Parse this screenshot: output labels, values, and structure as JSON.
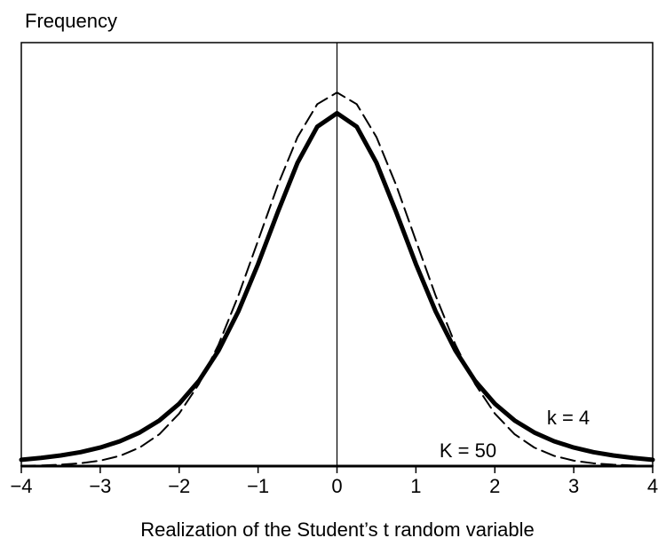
{
  "chart_data": {
    "type": "line",
    "title": "Frequency",
    "x_label": "Realization of the Student’s t random variable",
    "x": [
      -4,
      -3.75,
      -3.5,
      -3.25,
      -3,
      -2.75,
      -2.5,
      -2.25,
      -2,
      -1.75,
      -1.5,
      -1.25,
      -1,
      -0.75,
      -0.5,
      -0.25,
      0,
      0.25,
      0.5,
      0.75,
      1,
      1.25,
      1.5,
      1.75,
      2,
      2.25,
      2.5,
      2.75,
      3,
      3.25,
      3.5,
      3.75,
      4
    ],
    "series": [
      {
        "name": "k = 4",
        "color": "#000000",
        "line_style": "solid",
        "values": [
          0.0067,
          0.0087,
          0.0113,
          0.0148,
          0.0197,
          0.0264,
          0.0357,
          0.0485,
          0.0663,
          0.0905,
          0.1229,
          0.1644,
          0.2147,
          0.2699,
          0.3223,
          0.3607,
          0.375,
          0.3607,
          0.3223,
          0.2699,
          0.2147,
          0.1644,
          0.1229,
          0.0905,
          0.0663,
          0.0485,
          0.0357,
          0.0264,
          0.0197,
          0.0148,
          0.0113,
          0.0087,
          0.0067
        ]
      },
      {
        "name": "K = 50",
        "color": "#000000",
        "line_style": "dashed",
        "values": [
          0.0003,
          0.0007,
          0.0015,
          0.003,
          0.0058,
          0.0109,
          0.0197,
          0.0339,
          0.0558,
          0.0872,
          0.1292,
          0.1811,
          0.2396,
          0.2985,
          0.3496,
          0.3846,
          0.397,
          0.3846,
          0.3496,
          0.2985,
          0.2396,
          0.1811,
          0.1292,
          0.0872,
          0.0558,
          0.0339,
          0.0197,
          0.0109,
          0.0058,
          0.003,
          0.0015,
          0.0007,
          0.0003
        ]
      }
    ],
    "xlim": [
      -4,
      4
    ],
    "xticks": [
      {
        "value": -4,
        "label": "−4"
      },
      {
        "value": -3,
        "label": "−3"
      },
      {
        "value": -2,
        "label": "−2"
      },
      {
        "value": -1,
        "label": "−1"
      },
      0,
      1,
      2,
      3,
      4
    ],
    "ylim": [
      0,
      0.45
    ],
    "grid": false
  }
}
